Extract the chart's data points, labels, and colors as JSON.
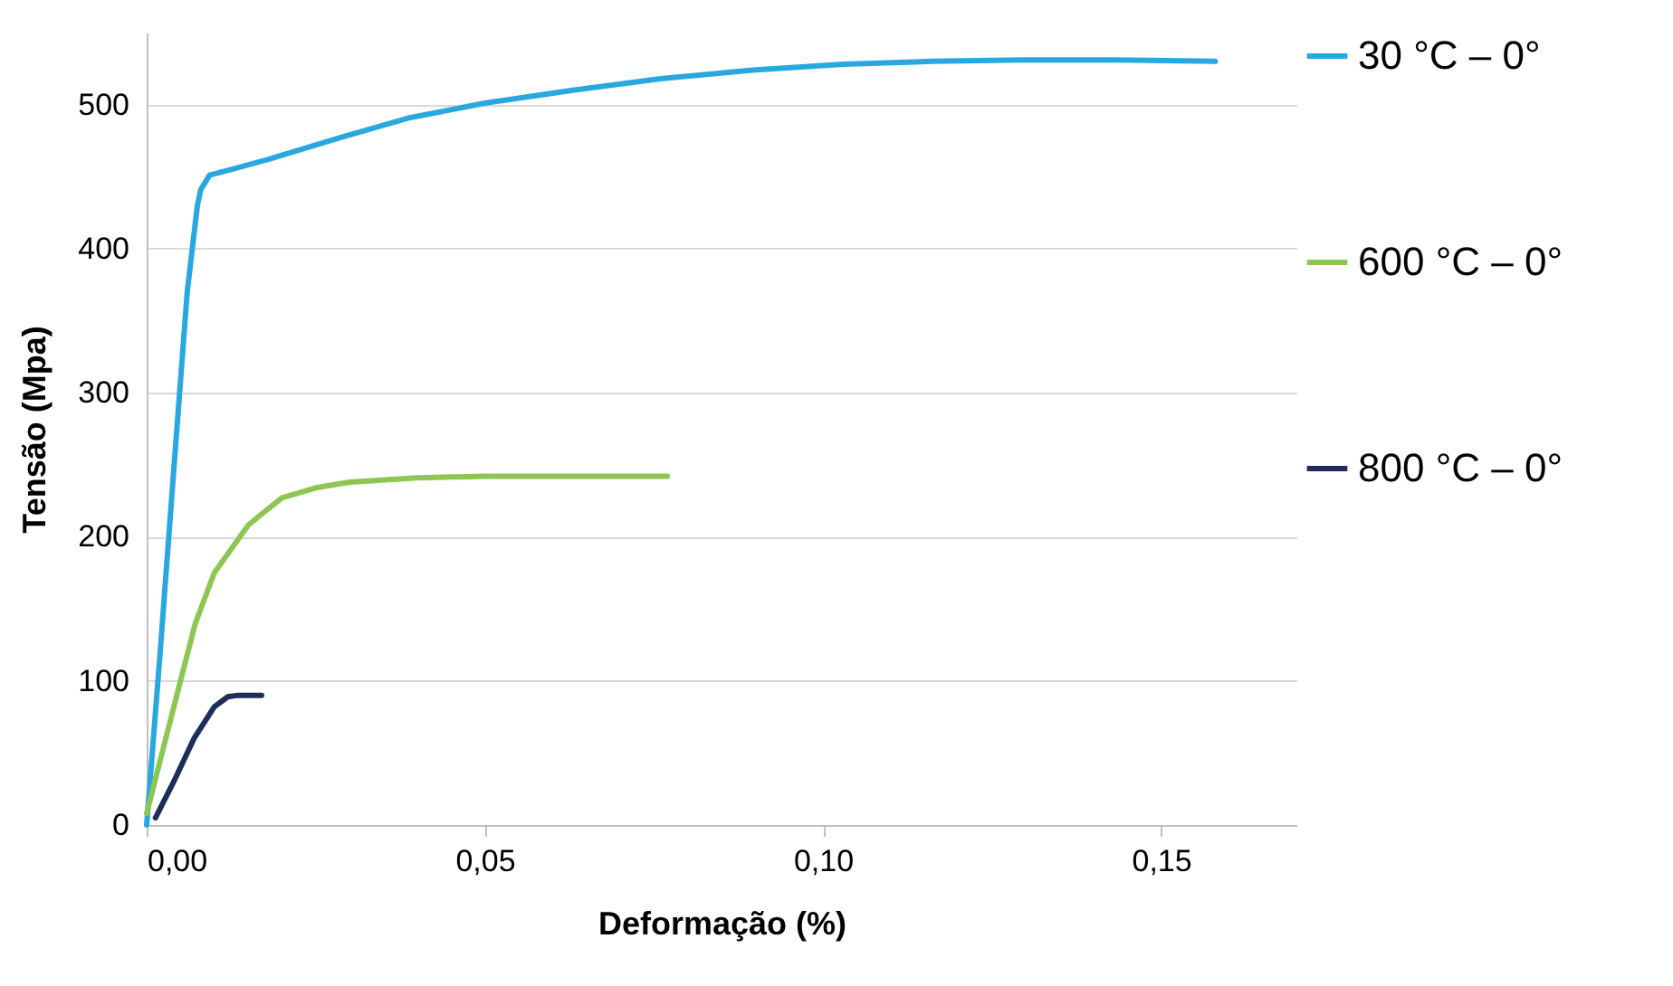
{
  "chart_data": {
    "type": "line",
    "xlabel": "Deformação (%)",
    "ylabel": "Tensão  (Mpa)",
    "xlim": [
      0,
      0.17
    ],
    "xticks": [
      {
        "value": 0,
        "label": "0,00"
      },
      {
        "value": 0.05,
        "label": "0,05"
      },
      {
        "value": 0.1,
        "label": "0,10"
      },
      {
        "value": 0.15,
        "label": "0,15"
      }
    ],
    "ylim": [
      0,
      550
    ],
    "yticks": [
      0,
      100,
      200,
      300,
      400,
      500
    ],
    "grid": "y",
    "legend": "right",
    "marker": "none",
    "line_style": "solid",
    "series": [
      {
        "name": "30 °C – 0°",
        "color": "#29a8e0",
        "x": [
          0,
          0.002,
          0.004,
          0.006,
          0.0075,
          0.008,
          0.0093,
          0.0125,
          0.018,
          0.0285,
          0.039,
          0.05,
          0.063,
          0.076,
          0.0896,
          0.103,
          0.116,
          0.1295,
          0.143,
          0.158
        ],
        "values": [
          0,
          120,
          246,
          370,
          430,
          441,
          451,
          455,
          462,
          477,
          491,
          501,
          510,
          518,
          524,
          528,
          530,
          531,
          531,
          530
        ]
      },
      {
        "name": "600 °C – 0°",
        "color": "#8dc652",
        "x": [
          0,
          0.005,
          0.0072,
          0.01,
          0.015,
          0.0168,
          0.02,
          0.025,
          0.03,
          0.04,
          0.05,
          0.077
        ],
        "values": [
          8,
          100,
          140,
          175,
          208,
          215,
          227,
          234,
          238,
          241,
          242,
          242
        ]
      },
      {
        "name": "800 °C – 0°",
        "color": "#1f2d5c",
        "x": [
          0.0013,
          0.004,
          0.007,
          0.01,
          0.012,
          0.0135,
          0.017
        ],
        "values": [
          5,
          30,
          60,
          82,
          89,
          90,
          90
        ]
      }
    ]
  }
}
